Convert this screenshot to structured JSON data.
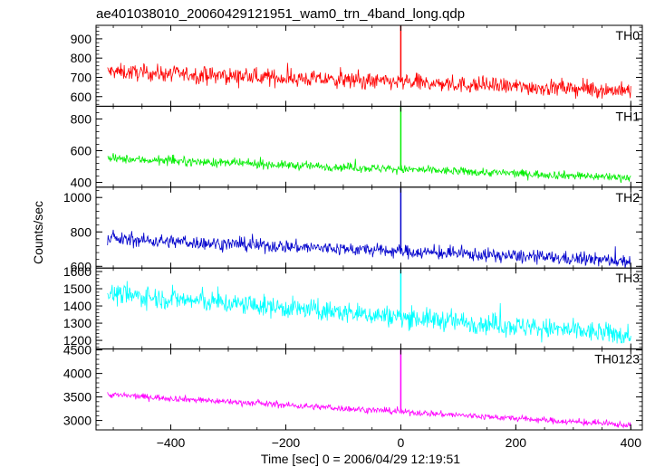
{
  "title": "ae401038010_20060429121951_wam0_trn_4band_long.qdp",
  "ylabel": "Counts/sec",
  "xlabel": "Time [sec] 0 = 2006/04/29 12:19:51",
  "chart_data": {
    "type": "line",
    "title": "ae401038010_20060429121951_wam0_trn_4band_long.qdp",
    "xlabel": "Time [sec] 0 = 2006/04/29 12:19:51",
    "ylabel": "Counts/sec",
    "xlim": [
      -530,
      420
    ],
    "xticks": [
      -400,
      -200,
      0,
      200,
      400
    ],
    "xtick_labels": [
      "−400",
      "−200",
      "0",
      "200",
      "400"
    ],
    "panels": [
      {
        "name": "TH0",
        "color": "#ff0000",
        "ylim": [
          550,
          970
        ],
        "yticks": [
          600,
          700,
          800,
          900
        ],
        "start_level": 730,
        "end_level": 630,
        "noise": 38,
        "spike_peak": 970,
        "spike_time": 0
      },
      {
        "name": "TH1",
        "color": "#00ee00",
        "ylim": [
          370,
          880
        ],
        "yticks": [
          400,
          600,
          800
        ],
        "start_level": 550,
        "end_level": 430,
        "noise": 24,
        "spike_peak": 880,
        "spike_time": 0
      },
      {
        "name": "TH2",
        "color": "#0000cc",
        "ylim": [
          590,
          1060
        ],
        "yticks": [
          600,
          800,
          1000
        ],
        "start_level": 760,
        "end_level": 630,
        "noise": 35,
        "spike_peak": 1055,
        "spike_time": 0
      },
      {
        "name": "TH3",
        "color": "#00ffff",
        "ylim": [
          1150,
          1620
        ],
        "yticks": [
          1200,
          1300,
          1400,
          1500,
          1600
        ],
        "start_level": 1470,
        "end_level": 1230,
        "noise": 55,
        "spike_peak": 1610,
        "spike_time": 0
      },
      {
        "name": "TH0123",
        "color": "#ff00ff",
        "ylim": [
          2800,
          4520
        ],
        "yticks": [
          3000,
          3500,
          4000,
          4500
        ],
        "start_level": 3550,
        "end_level": 2900,
        "noise": 60,
        "spike_peak": 4500,
        "spike_time": 0
      }
    ]
  }
}
